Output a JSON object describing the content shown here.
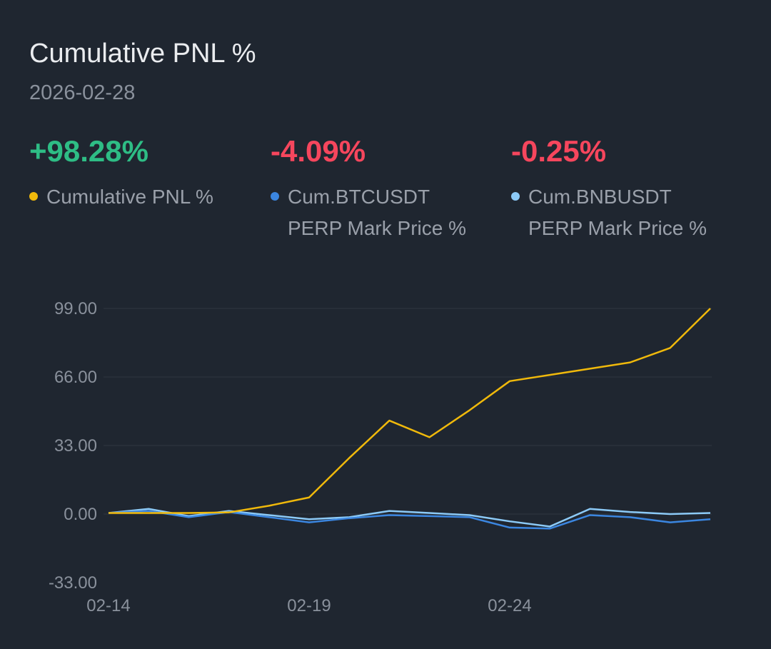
{
  "header": {
    "title": "Cumulative PNL %",
    "date": "2026-02-28"
  },
  "stats": [
    {
      "value": "+98.28%",
      "color": "#2ebd85",
      "legend": "Cumulative PNL %",
      "legend_line2": "",
      "dot": "#f0b90b"
    },
    {
      "value": "-4.09%",
      "color": "#f6465d",
      "legend": "Cum.BTCUSDT",
      "legend_line2": "PERP Mark Price %",
      "dot": "#3b86e0"
    },
    {
      "value": "-0.25%",
      "color": "#f6465d",
      "legend": "Cum.BNBUSDT",
      "legend_line2": "PERP Mark Price %",
      "dot": "#8ccaf7"
    }
  ],
  "chart_data": {
    "type": "line",
    "ylim": [
      -33,
      99
    ],
    "yticks": [
      "99.00",
      "66.00",
      "33.00",
      "0.00",
      "-33.00"
    ],
    "ytick_values": [
      99,
      66,
      33,
      0,
      -33
    ],
    "xticks": [
      "02-14",
      "02-19",
      "02-24"
    ],
    "xtick_index": [
      0,
      5,
      10
    ],
    "grid": true,
    "x": [
      "02-14",
      "02-15",
      "02-16",
      "02-17",
      "02-18",
      "02-19",
      "02-20",
      "02-21",
      "02-22",
      "02-23",
      "02-24",
      "02-25",
      "02-26",
      "02-27",
      "02-28",
      "03-01"
    ],
    "series": [
      {
        "name": "Cumulative PNL %",
        "color": "#f0b90b",
        "values": [
          0.5,
          0.5,
          0.5,
          0.8,
          4,
          8,
          27,
          45,
          37,
          50,
          64,
          67,
          70,
          73,
          80,
          99
        ]
      },
      {
        "name": "Cum.BTCUSDT PERP Mark Price %",
        "color": "#3b86e0",
        "values": [
          0.5,
          1.5,
          -1.5,
          1,
          -1.5,
          -4,
          -2,
          -0.5,
          -1,
          -1.5,
          -6.5,
          -7,
          -0.5,
          -1.5,
          -4,
          -2.5
        ]
      },
      {
        "name": "Cum.BNBUSDT PERP Mark Price %",
        "color": "#8ccaf7",
        "values": [
          0.5,
          2.5,
          -1,
          1.5,
          -0.5,
          -2.5,
          -1.5,
          1.5,
          0.5,
          -0.5,
          -3.5,
          -6,
          2.5,
          1,
          0,
          0.5
        ]
      }
    ]
  }
}
